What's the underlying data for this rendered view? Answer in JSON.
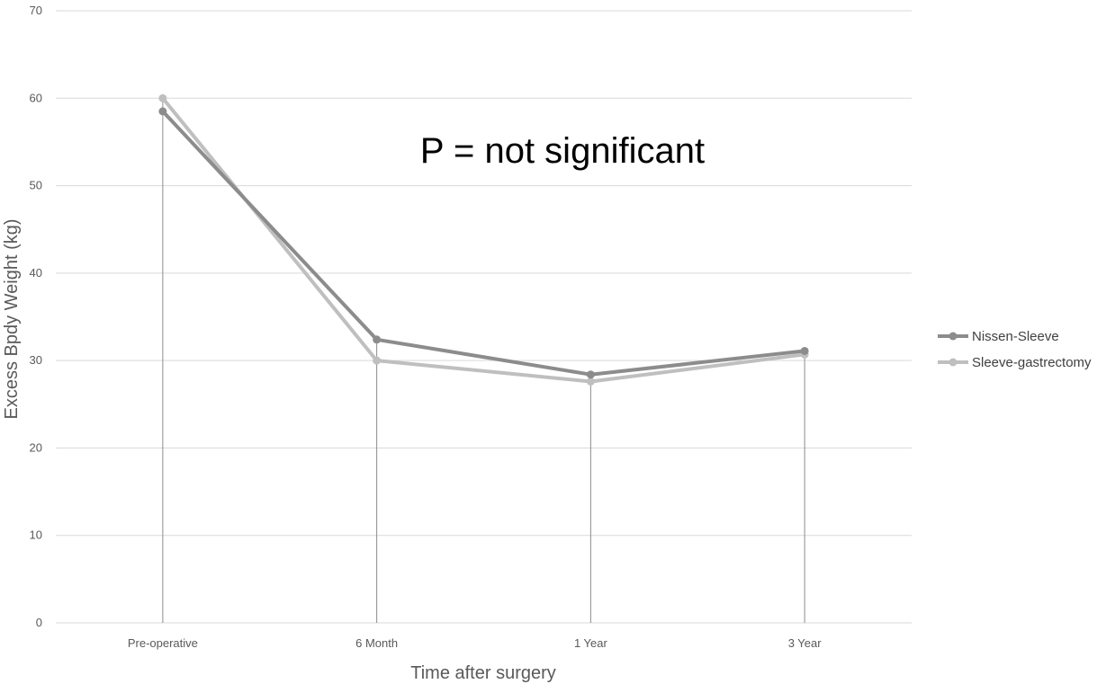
{
  "chart_data": {
    "type": "line",
    "categories": [
      "Pre-operative",
      "6 Month",
      "1 Year",
      "3 Year"
    ],
    "series": [
      {
        "name": "Nissen-Sleeve",
        "values": [
          58.5,
          32.4,
          28.4,
          31.1
        ],
        "color": "#8c8c8c"
      },
      {
        "name": "Sleeve-gastrectomy",
        "values": [
          60.0,
          30.0,
          27.6,
          30.7
        ],
        "color": "#bfbfbf"
      }
    ],
    "xlabel": "Time after surgery",
    "ylabel": "Excess Bpdy Weight (kg)",
    "ylim": [
      0,
      70
    ],
    "yticks": [
      0,
      10,
      20,
      30,
      40,
      50,
      60,
      70
    ],
    "annotation": "P = not significant",
    "grid": true,
    "drop_lines": true,
    "legend_position": "right",
    "gridline_color": "#d9d9d9",
    "dropline_color": "#8c8c8c"
  }
}
